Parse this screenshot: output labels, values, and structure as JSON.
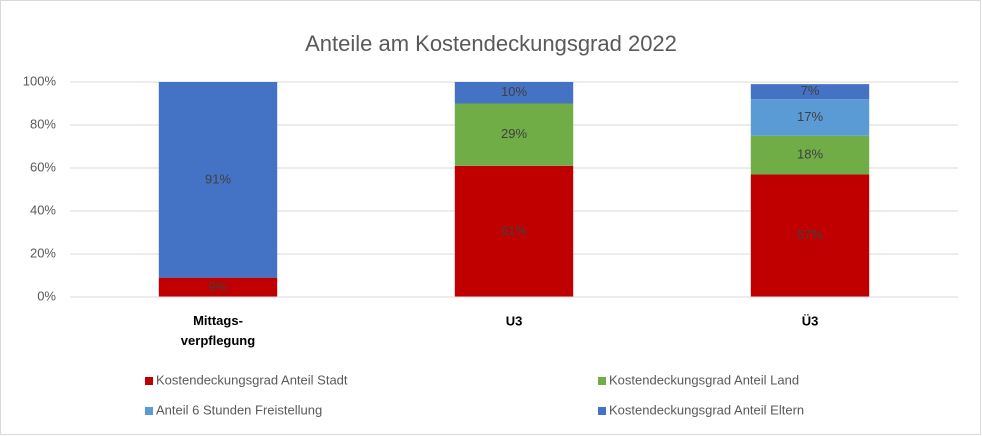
{
  "chart_data": {
    "type": "stacked_bar",
    "title": "Anteile am Kostendeckungsgrad 2022",
    "categories": [
      "Mittags-\nverpflegung",
      "U3",
      "Ü3"
    ],
    "series": [
      {
        "name": "Kostendeckungsgrad Anteil Stadt",
        "color": "#c00000",
        "values": [
          9,
          61,
          57
        ],
        "value_labels": [
          "9%",
          "61%",
          "57%"
        ]
      },
      {
        "name": "Kostendeckungsgrad Anteil Land",
        "color": "#70ad47",
        "values": [
          null,
          29,
          18
        ],
        "value_labels": [
          null,
          "29%",
          "18%"
        ]
      },
      {
        "name": "Anteil 6 Stunden Freistellung",
        "color": "#5b9bd5",
        "values": [
          null,
          null,
          17
        ],
        "value_labels": [
          null,
          null,
          "17%"
        ]
      },
      {
        "name": "Kostendeckungsgrad Anteil Eltern",
        "color": "#4472c4",
        "values": [
          91,
          10,
          7
        ],
        "value_labels": [
          "91%",
          "10%",
          "7%"
        ]
      }
    ],
    "ylim": [
      0,
      100
    ],
    "yticks": [
      {
        "value": 0,
        "label": "0%"
      },
      {
        "value": 20,
        "label": "20%"
      },
      {
        "value": 40,
        "label": "40%"
      },
      {
        "value": 60,
        "label": "60%"
      },
      {
        "value": 80,
        "label": "80%"
      },
      {
        "value": 100,
        "label": "100%"
      }
    ],
    "grid": true,
    "legend": "bottom"
  }
}
